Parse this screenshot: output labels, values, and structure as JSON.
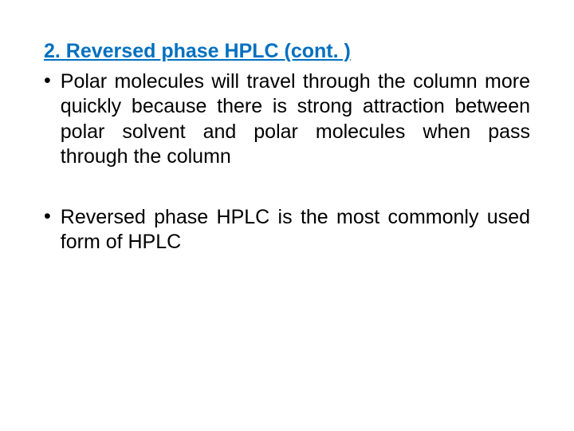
{
  "slide": {
    "heading": "2. Reversed phase HPLC (cont. )",
    "bullets": [
      {
        "marker": "•",
        "text": "Polar molecules will travel through the column more quickly because there is strong attraction between polar solvent and polar molecules when pass through the column"
      },
      {
        "marker": "•",
        "text": "Reversed phase HPLC is the most commonly used form of HPLC"
      }
    ],
    "colors": {
      "heading_color": "#0070c0",
      "text_color": "#000000",
      "background_color": "#ffffff"
    },
    "typography": {
      "heading_fontsize": 25,
      "body_fontsize": 25,
      "heading_weight": "bold",
      "heading_underline": true,
      "body_align": "justify"
    }
  }
}
